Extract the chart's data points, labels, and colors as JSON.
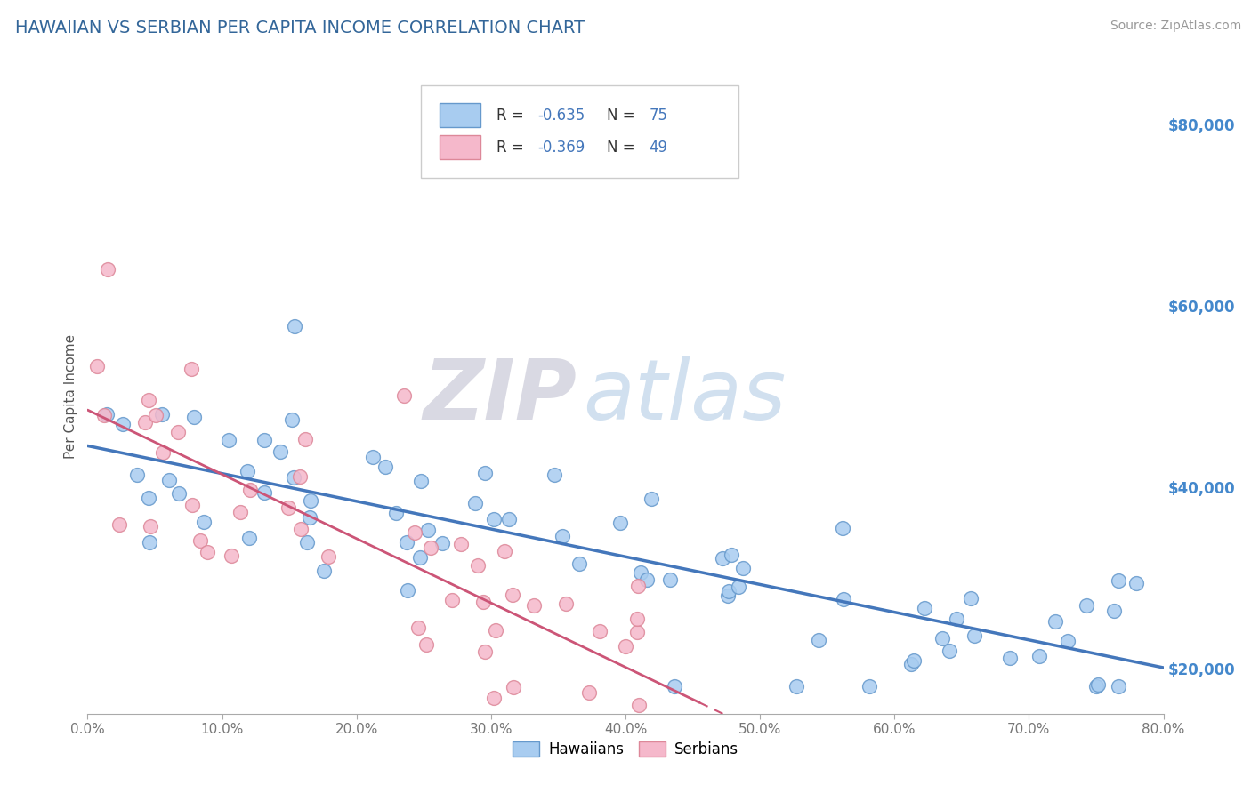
{
  "title": "HAWAIIAN VS SERBIAN PER CAPITA INCOME CORRELATION CHART",
  "source_text": "Source: ZipAtlas.com",
  "ylabel": "Per Capita Income",
  "xlim": [
    0,
    0.8
  ],
  "ylim": [
    15000,
    85000
  ],
  "yticks": [
    20000,
    40000,
    60000,
    80000
  ],
  "ytick_labels": [
    "$20,000",
    "$40,000",
    "$60,000",
    "$80,000"
  ],
  "xticks": [
    0.0,
    0.1,
    0.2,
    0.3,
    0.4,
    0.5,
    0.6,
    0.7,
    0.8
  ],
  "xtick_labels": [
    "0.0%",
    "10.0%",
    "20.0%",
    "30.0%",
    "40.0%",
    "50.0%",
    "60.0%",
    "70.0%",
    "80.0%"
  ],
  "hawaiian_color": "#A8CCF0",
  "hawaiian_edge": "#6699CC",
  "hawaiian_line": "#4477BB",
  "serbian_color": "#F5B8CB",
  "serbian_edge": "#DD8899",
  "serbian_line": "#CC5577",
  "R_hawaiian": -0.635,
  "N_hawaiian": 75,
  "R_serbian": -0.369,
  "N_serbian": 49,
  "legend_label_hawaiian": "Hawaiians",
  "legend_label_serbian": "Serbians",
  "watermark_zip": "ZIP",
  "watermark_atlas": "atlas",
  "background_color": "#ffffff",
  "grid_color": "#cccccc",
  "title_color": "#336699",
  "ylabel_color": "#555555",
  "ytick_color": "#4488CC",
  "source_color": "#999999",
  "haw_intercept": 43500,
  "haw_slope": -28000,
  "haw_noise": 5500,
  "ser_intercept": 44000,
  "ser_slope": -55000,
  "ser_noise": 7000
}
